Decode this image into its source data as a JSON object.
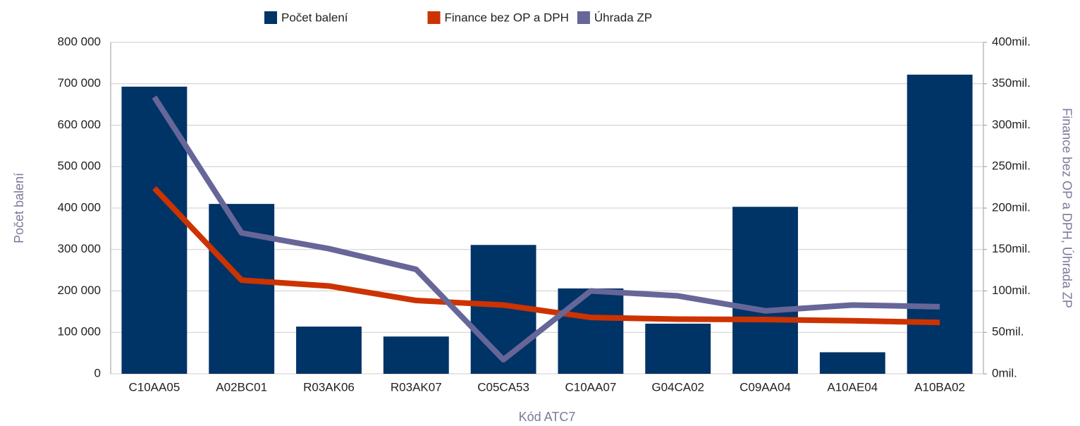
{
  "chart_data": {
    "type": "bar_line",
    "x_label": "Kód ATC7",
    "y_label": "Počet balení",
    "y2_label": "Finance bez OP a DPH, Úhrada ZP",
    "categories": [
      "C10AA05",
      "A02BC01",
      "R03AK06",
      "R03AK07",
      "C05CA53",
      "C10AA07",
      "G04CA02",
      "C09AA04",
      "A10AE04",
      "A10BA02"
    ],
    "series": [
      {
        "name": "Počet balení",
        "color": "#003366",
        "kind": "bar",
        "values": [
          693000,
          410000,
          114000,
          90000,
          311000,
          206000,
          121000,
          403000,
          52000,
          722000
        ]
      },
      {
        "name": "Finance bez OP a DPH",
        "color": "#cc3300",
        "kind": "line",
        "axis": "y2",
        "values": [
          224,
          113,
          106,
          88.5,
          83,
          68,
          66,
          65.5,
          64,
          62
        ]
      },
      {
        "name": "Úhrada ZP",
        "color": "#666699",
        "kind": "line",
        "axis": "y2",
        "values": [
          334,
          170,
          151,
          126,
          17,
          100,
          94,
          76,
          83,
          81
        ]
      }
    ],
    "ylim": [
      0,
      800000
    ],
    "yticks": [
      0,
      {
        "value": 100000,
        "label": "100 000"
      },
      {
        "value": 200000,
        "label": "200 000"
      },
      {
        "value": 300000,
        "label": "300 000"
      },
      {
        "value": 400000,
        "label": "400 000"
      },
      {
        "value": 500000,
        "label": "500 000"
      },
      {
        "value": 600000,
        "label": "600 000"
      },
      {
        "value": 700000,
        "label": "700 000"
      },
      {
        "value": 800000,
        "label": "800 000"
      }
    ],
    "y2lim": [
      0,
      400
    ],
    "y2ticks": [
      {
        "value": 0,
        "label": "0mil."
      },
      {
        "value": 50,
        "label": "50mil."
      },
      {
        "value": 100,
        "label": "100mil."
      },
      {
        "value": 150,
        "label": "150mil."
      },
      {
        "value": 200,
        "label": "200mil."
      },
      {
        "value": 250,
        "label": "250mil."
      },
      {
        "value": 300,
        "label": "300mil."
      },
      {
        "value": 350,
        "label": "350mil."
      },
      {
        "value": 400,
        "label": "400mil."
      }
    ],
    "grid": true,
    "legend": "top"
  }
}
